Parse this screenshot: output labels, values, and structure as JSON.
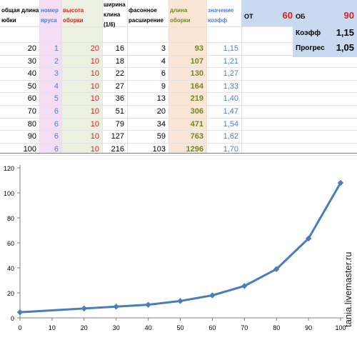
{
  "table": {
    "headers": [
      "общая длина юбки",
      "номер яруса",
      "высота оборки",
      "ширина клина (1/6)",
      "фасонное расширение",
      "длина оборки",
      "значение коэфф"
    ],
    "rows": [
      [
        20,
        1,
        20,
        16,
        3,
        93,
        "1,15"
      ],
      [
        30,
        2,
        10,
        18,
        4,
        107,
        "1,21"
      ],
      [
        40,
        3,
        10,
        22,
        6,
        130,
        "1,27"
      ],
      [
        50,
        4,
        10,
        27,
        9,
        164,
        "1,33"
      ],
      [
        60,
        5,
        10,
        36,
        13,
        219,
        "1,40"
      ],
      [
        70,
        6,
        10,
        51,
        20,
        306,
        "1,47"
      ],
      [
        80,
        6,
        10,
        79,
        34,
        471,
        "1,54"
      ],
      [
        90,
        6,
        10,
        127,
        59,
        763,
        "1,62"
      ],
      [
        100,
        6,
        10,
        216,
        103,
        1296,
        "1,70"
      ]
    ]
  },
  "params": {
    "ot_label": "ОТ",
    "ot_value": "60",
    "ob_label": "ОБ",
    "ob_value": "90",
    "koeff_label": "Коэфф",
    "koeff_value": "1,15",
    "progress_label": "Прогрес",
    "progress_value": "1,05"
  },
  "colors": {
    "line": "#4a7ebb",
    "pink_col": "#f5ddf5",
    "green_col": "#ebf0e0",
    "orange_col": "#fbe6d6",
    "panel": "#c9daf0",
    "red_text": "#e02020",
    "blue_text": "#4f7fd1",
    "olive_text": "#6e8a22"
  },
  "chart_data": {
    "type": "line",
    "x": [
      0,
      20,
      30,
      40,
      50,
      60,
      70,
      80,
      90,
      100
    ],
    "series": [
      {
        "values": [
          4.5,
          7.5,
          9,
          10.5,
          13.5,
          18,
          25.5,
          39,
          63.5,
          108
        ]
      }
    ],
    "xticks": [
      0,
      10,
      20,
      30,
      40,
      50,
      60,
      70,
      80,
      90,
      100
    ],
    "yticks": [
      0,
      20,
      40,
      60,
      80,
      100,
      120
    ],
    "xlim": [
      0,
      100
    ],
    "ylim": [
      0,
      120
    ],
    "grid": false,
    "marker": "diamond"
  },
  "watermark": "tania.livemaster.ru"
}
